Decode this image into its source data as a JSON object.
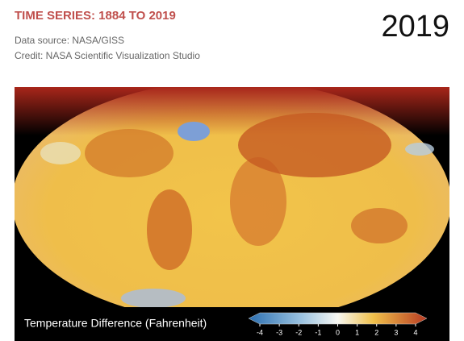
{
  "header": {
    "title": "TIME SERIES: 1884 TO 2019",
    "source": "Data source: NASA/GISS",
    "credit": "Credit: NASA Scientific Visualization Studio",
    "year": "2019"
  },
  "legend": {
    "label": "Temperature Difference (Fahrenheit)",
    "ticks": [
      -4,
      -3,
      -2,
      -1,
      0,
      1,
      2,
      3,
      4
    ]
  }
}
